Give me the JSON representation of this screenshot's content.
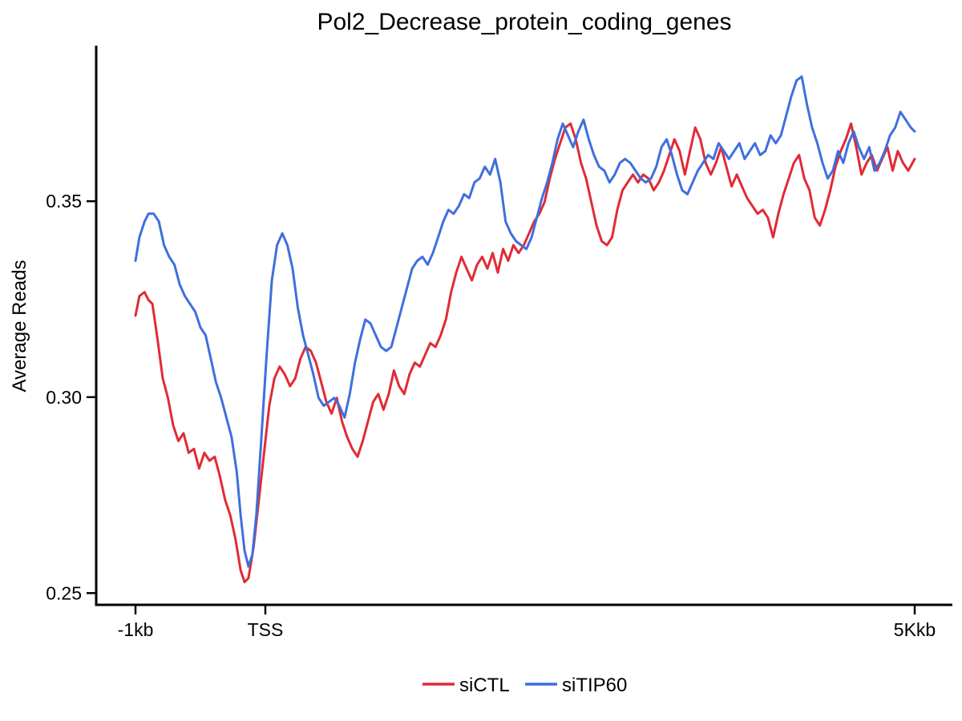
{
  "chart_data": {
    "type": "line",
    "title": "Pol2_Decrease_protein_coding_genes",
    "xlabel": "",
    "ylabel": "Average Reads",
    "xlim": [
      0,
      600
    ],
    "ylim": [
      0.247,
      0.3897
    ],
    "x_ticks": [
      {
        "value": 0,
        "label": "-1kb"
      },
      {
        "value": 100,
        "label": "TSS"
      },
      {
        "value": 600,
        "label": "5Kkb"
      }
    ],
    "y_ticks": [
      {
        "value": 0.25,
        "label": "0.25"
      },
      {
        "value": 0.3,
        "label": "0.30"
      },
      {
        "value": 0.35,
        "label": "0.35"
      }
    ],
    "grid": false,
    "legend": "bottom",
    "series": [
      {
        "name": "siCTL",
        "color": "#e02b35",
        "points": [
          [
            0,
            0.3208
          ],
          [
            3,
            0.3258
          ],
          [
            7,
            0.3268
          ],
          [
            10,
            0.3248
          ],
          [
            13,
            0.3238
          ],
          [
            17,
            0.3148
          ],
          [
            21,
            0.3048
          ],
          [
            25,
            0.2998
          ],
          [
            29,
            0.2928
          ],
          [
            33,
            0.2888
          ],
          [
            37,
            0.2908
          ],
          [
            41,
            0.2858
          ],
          [
            45,
            0.2868
          ],
          [
            49,
            0.2818
          ],
          [
            53,
            0.2858
          ],
          [
            57,
            0.2838
          ],
          [
            61,
            0.2848
          ],
          [
            65,
            0.2798
          ],
          [
            69,
            0.2738
          ],
          [
            73,
            0.2698
          ],
          [
            77,
            0.2638
          ],
          [
            81,
            0.2558
          ],
          [
            84,
            0.2528
          ],
          [
            87,
            0.2538
          ],
          [
            91,
            0.2618
          ],
          [
            95,
            0.2738
          ],
          [
            99,
            0.2858
          ],
          [
            103,
            0.2978
          ],
          [
            107,
            0.3048
          ],
          [
            111,
            0.3078
          ],
          [
            115,
            0.3058
          ],
          [
            119,
            0.3028
          ],
          [
            123,
            0.3048
          ],
          [
            127,
            0.3098
          ],
          [
            131,
            0.3128
          ],
          [
            135,
            0.3118
          ],
          [
            139,
            0.3088
          ],
          [
            143,
            0.3038
          ],
          [
            147,
            0.2988
          ],
          [
            151,
            0.2958
          ],
          [
            155,
            0.2998
          ],
          [
            159,
            0.2938
          ],
          [
            163,
            0.2898
          ],
          [
            167,
            0.2868
          ],
          [
            171,
            0.2848
          ],
          [
            175,
            0.2888
          ],
          [
            179,
            0.2938
          ],
          [
            183,
            0.2988
          ],
          [
            187,
            0.3008
          ],
          [
            191,
            0.2968
          ],
          [
            195,
            0.3008
          ],
          [
            199,
            0.3068
          ],
          [
            203,
            0.3028
          ],
          [
            207,
            0.3008
          ],
          [
            211,
            0.3058
          ],
          [
            215,
            0.3088
          ],
          [
            219,
            0.3078
          ],
          [
            223,
            0.3108
          ],
          [
            227,
            0.3138
          ],
          [
            231,
            0.3128
          ],
          [
            235,
            0.3158
          ],
          [
            239,
            0.3198
          ],
          [
            243,
            0.3268
          ],
          [
            247,
            0.3318
          ],
          [
            251,
            0.3358
          ],
          [
            255,
            0.3328
          ],
          [
            259,
            0.3298
          ],
          [
            263,
            0.3338
          ],
          [
            267,
            0.3358
          ],
          [
            271,
            0.3328
          ],
          [
            275,
            0.3368
          ],
          [
            279,
            0.3318
          ],
          [
            283,
            0.3378
          ],
          [
            287,
            0.3348
          ],
          [
            291,
            0.3388
          ],
          [
            295,
            0.3368
          ],
          [
            299,
            0.3388
          ],
          [
            303,
            0.3418
          ],
          [
            307,
            0.3448
          ],
          [
            311,
            0.3468
          ],
          [
            315,
            0.3498
          ],
          [
            319,
            0.3558
          ],
          [
            323,
            0.3608
          ],
          [
            327,
            0.3648
          ],
          [
            331,
            0.3688
          ],
          [
            335,
            0.3698
          ],
          [
            339,
            0.3658
          ],
          [
            343,
            0.3598
          ],
          [
            347,
            0.3558
          ],
          [
            351,
            0.3498
          ],
          [
            355,
            0.3438
          ],
          [
            359,
            0.3398
          ],
          [
            363,
            0.3388
          ],
          [
            367,
            0.3408
          ],
          [
            371,
            0.3478
          ],
          [
            375,
            0.3528
          ],
          [
            379,
            0.3548
          ],
          [
            383,
            0.3568
          ],
          [
            387,
            0.3548
          ],
          [
            391,
            0.3568
          ],
          [
            395,
            0.3558
          ],
          [
            399,
            0.3528
          ],
          [
            403,
            0.3548
          ],
          [
            407,
            0.3578
          ],
          [
            411,
            0.3618
          ],
          [
            415,
            0.3658
          ],
          [
            419,
            0.3628
          ],
          [
            423,
            0.3568
          ],
          [
            427,
            0.3628
          ],
          [
            431,
            0.3688
          ],
          [
            435,
            0.3658
          ],
          [
            439,
            0.3598
          ],
          [
            443,
            0.3568
          ],
          [
            447,
            0.3598
          ],
          [
            451,
            0.3638
          ],
          [
            455,
            0.3588
          ],
          [
            459,
            0.3538
          ],
          [
            463,
            0.3568
          ],
          [
            467,
            0.3538
          ],
          [
            471,
            0.3508
          ],
          [
            475,
            0.3488
          ],
          [
            479,
            0.3468
          ],
          [
            483,
            0.3478
          ],
          [
            487,
            0.3458
          ],
          [
            491,
            0.3408
          ],
          [
            495,
            0.3468
          ],
          [
            499,
            0.3518
          ],
          [
            503,
            0.3558
          ],
          [
            507,
            0.3598
          ],
          [
            511,
            0.3618
          ],
          [
            515,
            0.3558
          ],
          [
            519,
            0.3528
          ],
          [
            523,
            0.3458
          ],
          [
            527,
            0.3438
          ],
          [
            531,
            0.3478
          ],
          [
            535,
            0.3528
          ],
          [
            539,
            0.3588
          ],
          [
            543,
            0.3628
          ],
          [
            547,
            0.3658
          ],
          [
            551,
            0.3698
          ],
          [
            555,
            0.3638
          ],
          [
            559,
            0.3568
          ],
          [
            563,
            0.3598
          ],
          [
            567,
            0.3618
          ],
          [
            571,
            0.3578
          ],
          [
            575,
            0.3608
          ],
          [
            579,
            0.3638
          ],
          [
            583,
            0.3578
          ],
          [
            587,
            0.3628
          ],
          [
            591,
            0.3598
          ],
          [
            595,
            0.3578
          ],
          [
            600,
            0.3608
          ]
        ]
      },
      {
        "name": "siTIP60",
        "color": "#3f6fdd",
        "points": [
          [
            0,
            0.3348
          ],
          [
            3,
            0.3408
          ],
          [
            7,
            0.3448
          ],
          [
            10,
            0.3468
          ],
          [
            14,
            0.3468
          ],
          [
            18,
            0.3448
          ],
          [
            22,
            0.3388
          ],
          [
            26,
            0.3358
          ],
          [
            30,
            0.3338
          ],
          [
            34,
            0.3288
          ],
          [
            38,
            0.3258
          ],
          [
            42,
            0.3238
          ],
          [
            46,
            0.3218
          ],
          [
            50,
            0.3178
          ],
          [
            54,
            0.3158
          ],
          [
            58,
            0.3098
          ],
          [
            62,
            0.3038
          ],
          [
            66,
            0.2998
          ],
          [
            70,
            0.2948
          ],
          [
            74,
            0.2898
          ],
          [
            78,
            0.2808
          ],
          [
            81,
            0.2698
          ],
          [
            84,
            0.2608
          ],
          [
            87,
            0.2568
          ],
          [
            90,
            0.2598
          ],
          [
            93,
            0.2698
          ],
          [
            97,
            0.2898
          ],
          [
            101,
            0.3108
          ],
          [
            105,
            0.3298
          ],
          [
            109,
            0.3388
          ],
          [
            113,
            0.3418
          ],
          [
            117,
            0.3388
          ],
          [
            121,
            0.3328
          ],
          [
            125,
            0.3228
          ],
          [
            129,
            0.3158
          ],
          [
            133,
            0.3108
          ],
          [
            137,
            0.3058
          ],
          [
            141,
            0.2998
          ],
          [
            145,
            0.2978
          ],
          [
            149,
            0.2988
          ],
          [
            153,
            0.2998
          ],
          [
            157,
            0.2978
          ],
          [
            161,
            0.2948
          ],
          [
            165,
            0.3008
          ],
          [
            169,
            0.3088
          ],
          [
            173,
            0.3148
          ],
          [
            177,
            0.3198
          ],
          [
            181,
            0.3188
          ],
          [
            185,
            0.3158
          ],
          [
            189,
            0.3128
          ],
          [
            193,
            0.3118
          ],
          [
            197,
            0.3128
          ],
          [
            201,
            0.3178
          ],
          [
            205,
            0.3228
          ],
          [
            209,
            0.3278
          ],
          [
            213,
            0.3328
          ],
          [
            217,
            0.3348
          ],
          [
            221,
            0.3358
          ],
          [
            225,
            0.3338
          ],
          [
            229,
            0.3368
          ],
          [
            233,
            0.3408
          ],
          [
            237,
            0.3448
          ],
          [
            241,
            0.3478
          ],
          [
            245,
            0.3468
          ],
          [
            249,
            0.3488
          ],
          [
            253,
            0.3518
          ],
          [
            257,
            0.3508
          ],
          [
            261,
            0.3548
          ],
          [
            265,
            0.3558
          ],
          [
            269,
            0.3588
          ],
          [
            273,
            0.3568
          ],
          [
            277,
            0.3608
          ],
          [
            281,
            0.3548
          ],
          [
            285,
            0.3448
          ],
          [
            289,
            0.3418
          ],
          [
            293,
            0.3398
          ],
          [
            297,
            0.3388
          ],
          [
            301,
            0.3378
          ],
          [
            305,
            0.3408
          ],
          [
            309,
            0.3458
          ],
          [
            313,
            0.3508
          ],
          [
            317,
            0.3548
          ],
          [
            321,
            0.3598
          ],
          [
            325,
            0.3658
          ],
          [
            329,
            0.3698
          ],
          [
            333,
            0.3668
          ],
          [
            337,
            0.3638
          ],
          [
            341,
            0.3678
          ],
          [
            345,
            0.3708
          ],
          [
            349,
            0.3658
          ],
          [
            353,
            0.3618
          ],
          [
            357,
            0.3588
          ],
          [
            361,
            0.3578
          ],
          [
            365,
            0.3548
          ],
          [
            369,
            0.3568
          ],
          [
            373,
            0.3598
          ],
          [
            377,
            0.3608
          ],
          [
            381,
            0.3598
          ],
          [
            385,
            0.3578
          ],
          [
            389,
            0.3558
          ],
          [
            393,
            0.3548
          ],
          [
            397,
            0.3558
          ],
          [
            401,
            0.3588
          ],
          [
            405,
            0.3638
          ],
          [
            409,
            0.3658
          ],
          [
            413,
            0.3618
          ],
          [
            417,
            0.3568
          ],
          [
            421,
            0.3528
          ],
          [
            425,
            0.3518
          ],
          [
            429,
            0.3548
          ],
          [
            433,
            0.3578
          ],
          [
            437,
            0.3598
          ],
          [
            441,
            0.3618
          ],
          [
            445,
            0.3608
          ],
          [
            449,
            0.3648
          ],
          [
            453,
            0.3628
          ],
          [
            457,
            0.3608
          ],
          [
            461,
            0.3628
          ],
          [
            465,
            0.3648
          ],
          [
            469,
            0.3608
          ],
          [
            473,
            0.3628
          ],
          [
            477,
            0.3648
          ],
          [
            481,
            0.3618
          ],
          [
            485,
            0.3628
          ],
          [
            489,
            0.3668
          ],
          [
            493,
            0.3648
          ],
          [
            497,
            0.3668
          ],
          [
            501,
            0.3718
          ],
          [
            505,
            0.3768
          ],
          [
            509,
            0.3808
          ],
          [
            513,
            0.3818
          ],
          [
            517,
            0.3748
          ],
          [
            521,
            0.3688
          ],
          [
            525,
            0.3648
          ],
          [
            529,
            0.3598
          ],
          [
            533,
            0.3558
          ],
          [
            537,
            0.3578
          ],
          [
            541,
            0.3628
          ],
          [
            545,
            0.3598
          ],
          [
            549,
            0.3648
          ],
          [
            553,
            0.3678
          ],
          [
            557,
            0.3638
          ],
          [
            561,
            0.3608
          ],
          [
            565,
            0.3638
          ],
          [
            569,
            0.3578
          ],
          [
            573,
            0.3598
          ],
          [
            577,
            0.3628
          ],
          [
            581,
            0.3668
          ],
          [
            585,
            0.3688
          ],
          [
            589,
            0.3728
          ],
          [
            593,
            0.3708
          ],
          [
            597,
            0.3688
          ],
          [
            600,
            0.3678
          ]
        ]
      }
    ]
  }
}
